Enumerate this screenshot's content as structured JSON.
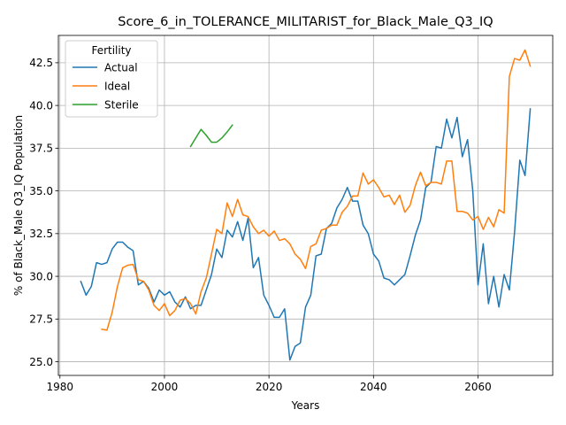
{
  "chart_data": {
    "type": "line",
    "title": "Score_6_in_TOLERANCE_MILITARIST_for_Black_Male_Q3_IQ",
    "xlabel": "Years",
    "ylabel": "% of Black_Male Q3_IQ Population",
    "xlim": [
      1979.7,
      2074.3
    ],
    "ylim": [
      24.2,
      44.1
    ],
    "x_ticks": [
      1980,
      2000,
      2020,
      2040,
      2060
    ],
    "x_tick_labels": [
      "1980",
      "2000",
      "2020",
      "2040",
      "2060"
    ],
    "y_ticks": [
      25.0,
      27.5,
      30.0,
      32.5,
      35.0,
      37.5,
      40.0,
      42.5
    ],
    "y_tick_labels": [
      "25.0",
      "27.5",
      "30.0",
      "32.5",
      "35.0",
      "37.5",
      "40.0",
      "42.5"
    ],
    "grid": true,
    "legend": {
      "title": "Fertility",
      "placement": "upper-left"
    },
    "series": [
      {
        "name": "Actual",
        "color": "#1f77b4",
        "x": [
          1984,
          1985,
          1986,
          1987,
          1988,
          1989,
          1990,
          1991,
          1992,
          1993,
          1994,
          1995,
          1996,
          1997,
          1998,
          1999,
          2000,
          2001,
          2002,
          2003,
          2004,
          2005,
          2006,
          2007,
          2008,
          2009,
          2010,
          2011,
          2012,
          2013,
          2014,
          2015,
          2016,
          2017,
          2018,
          2019,
          2020,
          2021,
          2022,
          2023,
          2024,
          2025,
          2026,
          2027,
          2028,
          2029,
          2030,
          2031,
          2032,
          2033,
          2034,
          2035,
          2036,
          2037,
          2038,
          2039,
          2040,
          2041,
          2042,
          2043,
          2044,
          2045,
          2046,
          2047,
          2048,
          2049,
          2050,
          2051,
          2052,
          2053,
          2054,
          2055,
          2056,
          2057,
          2058,
          2059,
          2060,
          2061,
          2062,
          2063,
          2064,
          2065,
          2066,
          2067,
          2068,
          2069,
          2070
        ],
        "values": [
          29.7,
          28.9,
          29.4,
          30.8,
          30.7,
          30.8,
          31.6,
          32.0,
          32.0,
          31.7,
          31.5,
          29.5,
          29.7,
          29.3,
          28.5,
          29.2,
          28.9,
          29.1,
          28.5,
          28.2,
          28.8,
          28.1,
          28.3,
          28.3,
          29.2,
          30.1,
          31.6,
          31.1,
          32.7,
          32.3,
          33.2,
          32.1,
          33.4,
          30.5,
          31.1,
          28.9,
          28.3,
          27.6,
          27.6,
          28.1,
          25.1,
          25.9,
          26.1,
          28.2,
          28.9,
          31.2,
          31.3,
          32.8,
          33.1,
          34.0,
          34.5,
          35.2,
          34.4,
          34.4,
          33.0,
          32.5,
          31.3,
          30.9,
          29.9,
          29.8,
          29.5,
          29.8,
          30.1,
          31.2,
          32.4,
          33.3,
          35.2,
          35.5,
          37.6,
          37.5,
          39.2,
          38.1,
          39.3,
          37.0,
          38.0,
          35.0,
          29.5,
          31.9,
          28.4,
          30.0,
          28.2,
          30.1,
          29.2,
          32.6,
          36.8,
          35.9,
          39.8
        ]
      },
      {
        "name": "Ideal",
        "color": "#ff7f0e",
        "x": [
          1988,
          1989,
          1990,
          1991,
          1992,
          1993,
          1994,
          1995,
          1996,
          1997,
          1998,
          1999,
          2000,
          2001,
          2002,
          2003,
          2004,
          2005,
          2006,
          2007,
          2008,
          2009,
          2010,
          2011,
          2012,
          2013,
          2014,
          2015,
          2016,
          2017,
          2018,
          2019,
          2020,
          2021,
          2022,
          2023,
          2024,
          2025,
          2026,
          2027,
          2028,
          2029,
          2030,
          2031,
          2032,
          2033,
          2034,
          2035,
          2036,
          2037,
          2038,
          2039,
          2040,
          2041,
          2042,
          2043,
          2044,
          2045,
          2046,
          2047,
          2048,
          2049,
          2050,
          2051,
          2052,
          2053,
          2054,
          2055,
          2056,
          2057,
          2058,
          2059,
          2060,
          2061,
          2062,
          2063,
          2064,
          2065,
          2066,
          2067,
          2068,
          2069,
          2070
        ],
        "values": [
          26.9,
          26.85,
          27.9,
          29.4,
          30.5,
          30.65,
          30.7,
          29.8,
          29.7,
          29.2,
          28.3,
          28.0,
          28.4,
          27.7,
          28.0,
          28.6,
          28.7,
          28.4,
          27.8,
          29.1,
          29.9,
          31.3,
          32.75,
          32.5,
          34.3,
          33.5,
          34.5,
          33.6,
          33.5,
          32.9,
          32.5,
          32.7,
          32.35,
          32.65,
          32.1,
          32.2,
          31.9,
          31.3,
          31.0,
          30.45,
          31.75,
          31.9,
          32.7,
          32.8,
          33.0,
          33.0,
          33.75,
          34.1,
          34.7,
          34.7,
          36.05,
          35.4,
          35.65,
          35.2,
          34.65,
          34.75,
          34.2,
          34.75,
          33.75,
          34.15,
          35.3,
          36.1,
          35.3,
          35.5,
          35.5,
          35.4,
          36.75,
          36.75,
          33.8,
          33.8,
          33.7,
          33.3,
          33.5,
          32.75,
          33.45,
          32.9,
          33.9,
          33.7,
          41.7,
          42.75,
          42.65,
          43.25,
          42.3
        ]
      },
      {
        "name": "Sterile",
        "color": "#2ca02c",
        "x": [
          2005,
          2006,
          2007,
          2008,
          2009,
          2010,
          2011,
          2012,
          2013
        ],
        "values": [
          37.6,
          38.1,
          38.6,
          38.25,
          37.85,
          37.85,
          38.1,
          38.45,
          38.85
        ]
      }
    ]
  }
}
